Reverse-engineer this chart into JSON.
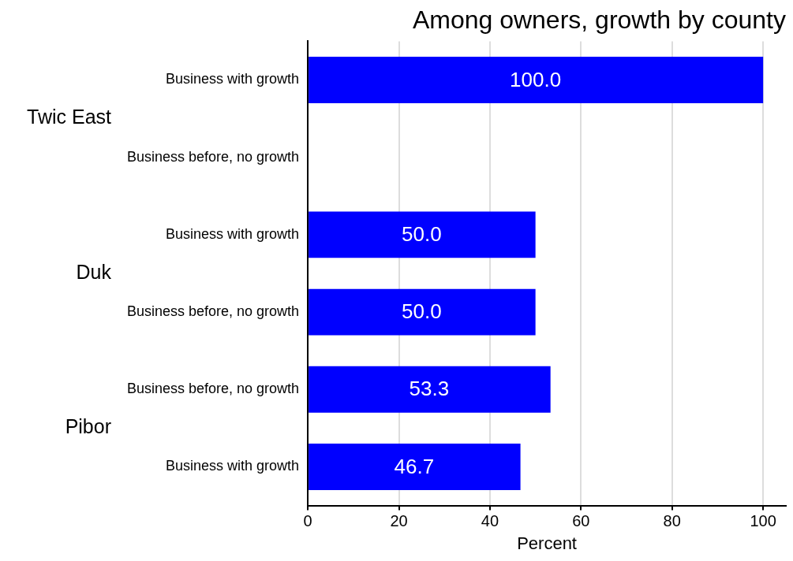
{
  "chart_data": {
    "type": "bar",
    "orientation": "horizontal",
    "title": "Among owners, growth by county",
    "xlabel": "Percent",
    "categories": [
      "Business with growth",
      "Business before, no growth",
      "Business with growth",
      "Business before, no growth",
      "Business before, no growth",
      "Business with growth"
    ],
    "values": [
      100.0,
      null,
      50.0,
      50.0,
      53.3,
      46.7
    ],
    "value_labels": [
      "100.0",
      null,
      "50.0",
      "50.0",
      "53.3",
      "46.7"
    ],
    "color": "#0000ff",
    "xlim": [
      0,
      105
    ],
    "xticks": [
      0,
      20,
      40,
      60,
      80,
      100
    ],
    "grid": "x",
    "legend": false,
    "annotations": [
      "Twic East",
      "Duk",
      "Pibor"
    ]
  }
}
